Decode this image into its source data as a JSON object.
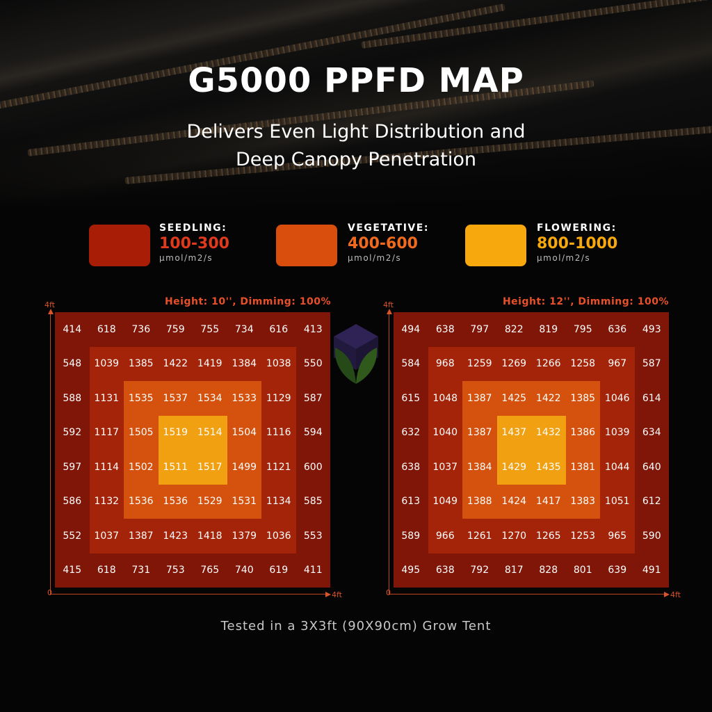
{
  "header": {
    "title": "G5000 PPFD MAP",
    "subtitle_line1": "Delivers Even Light Distribution and",
    "subtitle_line2": "Deep Canopy Penetration"
  },
  "legend": [
    {
      "label": "SEEDLING:",
      "range": "100-300",
      "unit": "μmol/m2/s",
      "swatch_color": "#a81d06",
      "text_color": "#e0391c"
    },
    {
      "label": "VEGETATIVE:",
      "range": "400-600",
      "unit": "μmol/m2/s",
      "swatch_color": "#d94e0c",
      "text_color": "#f06a1e"
    },
    {
      "label": "FLOWERING:",
      "range": "800-1000",
      "unit": "μmol/m2/s",
      "swatch_color": "#f7a80c",
      "text_color": "#f7a80c"
    }
  ],
  "colors": {
    "outer": "#7f1608",
    "ring2": "#a32409",
    "ring3": "#d4520d",
    "center": "#f0a010",
    "axis": "#d8542a"
  },
  "footer": "Tested in a 3X3ft (90X90cm) Grow Tent",
  "chart_data": [
    {
      "type": "heatmap",
      "title": "Height: 10'', Dimming: 100%",
      "x_axis": {
        "start_label": "0",
        "end_label": "4ft"
      },
      "y_axis": {
        "end_label": "4ft"
      },
      "values": [
        [
          414,
          618,
          736,
          759,
          755,
          734,
          616,
          413
        ],
        [
          548,
          1039,
          1385,
          1422,
          1419,
          1384,
          1038,
          550
        ],
        [
          588,
          1131,
          1535,
          1537,
          1534,
          1533,
          1129,
          587
        ],
        [
          592,
          1117,
          1505,
          1519,
          1514,
          1504,
          1116,
          594
        ],
        [
          597,
          1114,
          1502,
          1511,
          1517,
          1499,
          1121,
          600
        ],
        [
          586,
          1132,
          1536,
          1536,
          1529,
          1531,
          1134,
          585
        ],
        [
          552,
          1037,
          1387,
          1423,
          1418,
          1379,
          1036,
          553
        ],
        [
          415,
          618,
          731,
          753,
          765,
          740,
          619,
          411
        ]
      ]
    },
    {
      "type": "heatmap",
      "title": "Height: 12'', Dimming: 100%",
      "x_axis": {
        "start_label": "0",
        "end_label": "4ft"
      },
      "y_axis": {
        "end_label": "4ft"
      },
      "values": [
        [
          494,
          638,
          797,
          822,
          819,
          795,
          636,
          493
        ],
        [
          584,
          968,
          1259,
          1269,
          1266,
          1258,
          967,
          587
        ],
        [
          615,
          1048,
          1387,
          1425,
          1422,
          1385,
          1046,
          614
        ],
        [
          632,
          1040,
          1387,
          1437,
          1432,
          1386,
          1039,
          634
        ],
        [
          638,
          1037,
          1384,
          1429,
          1435,
          1381,
          1044,
          640
        ],
        [
          613,
          1049,
          1388,
          1424,
          1417,
          1383,
          1051,
          612
        ],
        [
          589,
          966,
          1261,
          1270,
          1265,
          1253,
          965,
          590
        ],
        [
          495,
          638,
          792,
          817,
          828,
          801,
          639,
          491
        ]
      ]
    }
  ]
}
